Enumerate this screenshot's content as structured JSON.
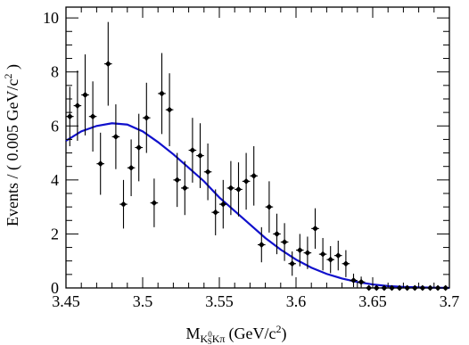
{
  "chart_data": {
    "type": "scatter",
    "xlabel": "M",
    "xlabel_subscript": "K",
    "xlabel_subscript_sup": "0",
    "xlabel_subscript_sub": "S",
    "xlabel_subscript_rest": "Kπ",
    "xlabel_units": "(GeV/c",
    "xlabel_units_sup": "2",
    "xlabel_units_close": ")",
    "ylabel": "Events / ( 0.005 GeV/c",
    "ylabel_sup": "2",
    "ylabel_close": " )",
    "xlim": [
      3.45,
      3.7
    ],
    "ylim": [
      0,
      10.4
    ],
    "x_ticks": [
      3.45,
      3.5,
      3.55,
      3.6,
      3.65,
      3.7
    ],
    "x_tick_labels": [
      "3.45",
      "3.5",
      "3.55",
      "3.6",
      "3.65",
      "3.7"
    ],
    "y_ticks": [
      0,
      2,
      4,
      6,
      8,
      10
    ],
    "y_tick_labels": [
      "0",
      "2",
      "4",
      "6",
      "8",
      "10"
    ],
    "grid": false,
    "colors": {
      "points": "#000000",
      "fit": "#1010cc",
      "axis": "#000000"
    },
    "series": [
      {
        "kind": "points_with_errors",
        "x": [
          3.4525,
          3.4575,
          3.4625,
          3.4675,
          3.4725,
          3.4775,
          3.4825,
          3.4875,
          3.4925,
          3.4975,
          3.5025,
          3.5075,
          3.5125,
          3.5175,
          3.5225,
          3.5275,
          3.5325,
          3.5375,
          3.5425,
          3.5475,
          3.5525,
          3.5575,
          3.5625,
          3.5675,
          3.5725,
          3.5775,
          3.5825,
          3.5875,
          3.5925,
          3.5975,
          3.6025,
          3.6075,
          3.6125,
          3.6175,
          3.6225,
          3.6275,
          3.6325,
          3.6375,
          3.6425,
          3.6475,
          3.6525,
          3.6575,
          3.6625,
          3.6675,
          3.6725,
          3.6775,
          3.6825,
          3.6875,
          3.6925,
          3.6975
        ],
        "y": [
          6.35,
          6.75,
          7.15,
          6.35,
          4.6,
          8.3,
          5.6,
          3.1,
          4.45,
          5.2,
          6.3,
          3.15,
          7.2,
          6.6,
          4.0,
          3.7,
          5.1,
          4.9,
          4.3,
          2.8,
          3.1,
          3.7,
          3.65,
          3.95,
          4.15,
          1.6,
          3.0,
          2.0,
          1.7,
          0.9,
          1.4,
          1.3,
          2.2,
          1.25,
          1.05,
          1.2,
          0.9,
          0.28,
          0.22,
          0.0,
          0.0,
          0.0,
          0.0,
          0.0,
          0.0,
          0.0,
          0.0,
          0.0,
          0.0,
          0.0
        ],
        "yerr": [
          1.1,
          1.3,
          1.5,
          1.3,
          1.15,
          1.55,
          1.2,
          0.9,
          1.05,
          1.25,
          1.3,
          0.9,
          1.5,
          1.35,
          1.0,
          1.0,
          1.2,
          1.2,
          1.05,
          0.85,
          0.9,
          1.0,
          1.0,
          1.05,
          1.1,
          0.65,
          0.95,
          0.75,
          0.7,
          0.45,
          0.6,
          0.6,
          0.75,
          0.6,
          0.5,
          0.55,
          0.5,
          0.25,
          0.2,
          0.0,
          0.0,
          0.0,
          0.0,
          0.0,
          0.0,
          0.0,
          0.0,
          0.0,
          0.0,
          0.0
        ]
      },
      {
        "kind": "fit_curve",
        "x": [
          3.45,
          3.46,
          3.47,
          3.48,
          3.49,
          3.5,
          3.51,
          3.52,
          3.53,
          3.54,
          3.55,
          3.56,
          3.57,
          3.58,
          3.59,
          3.6,
          3.61,
          3.62,
          3.63,
          3.64,
          3.65,
          3.66,
          3.67,
          3.68,
          3.69,
          3.7
        ],
        "y": [
          5.45,
          5.8,
          6.0,
          6.1,
          6.05,
          5.8,
          5.4,
          4.95,
          4.45,
          3.95,
          3.35,
          2.85,
          2.35,
          1.85,
          1.42,
          1.05,
          0.75,
          0.52,
          0.35,
          0.22,
          0.13,
          0.07,
          0.04,
          0.02,
          0.01,
          0.0
        ]
      }
    ]
  }
}
